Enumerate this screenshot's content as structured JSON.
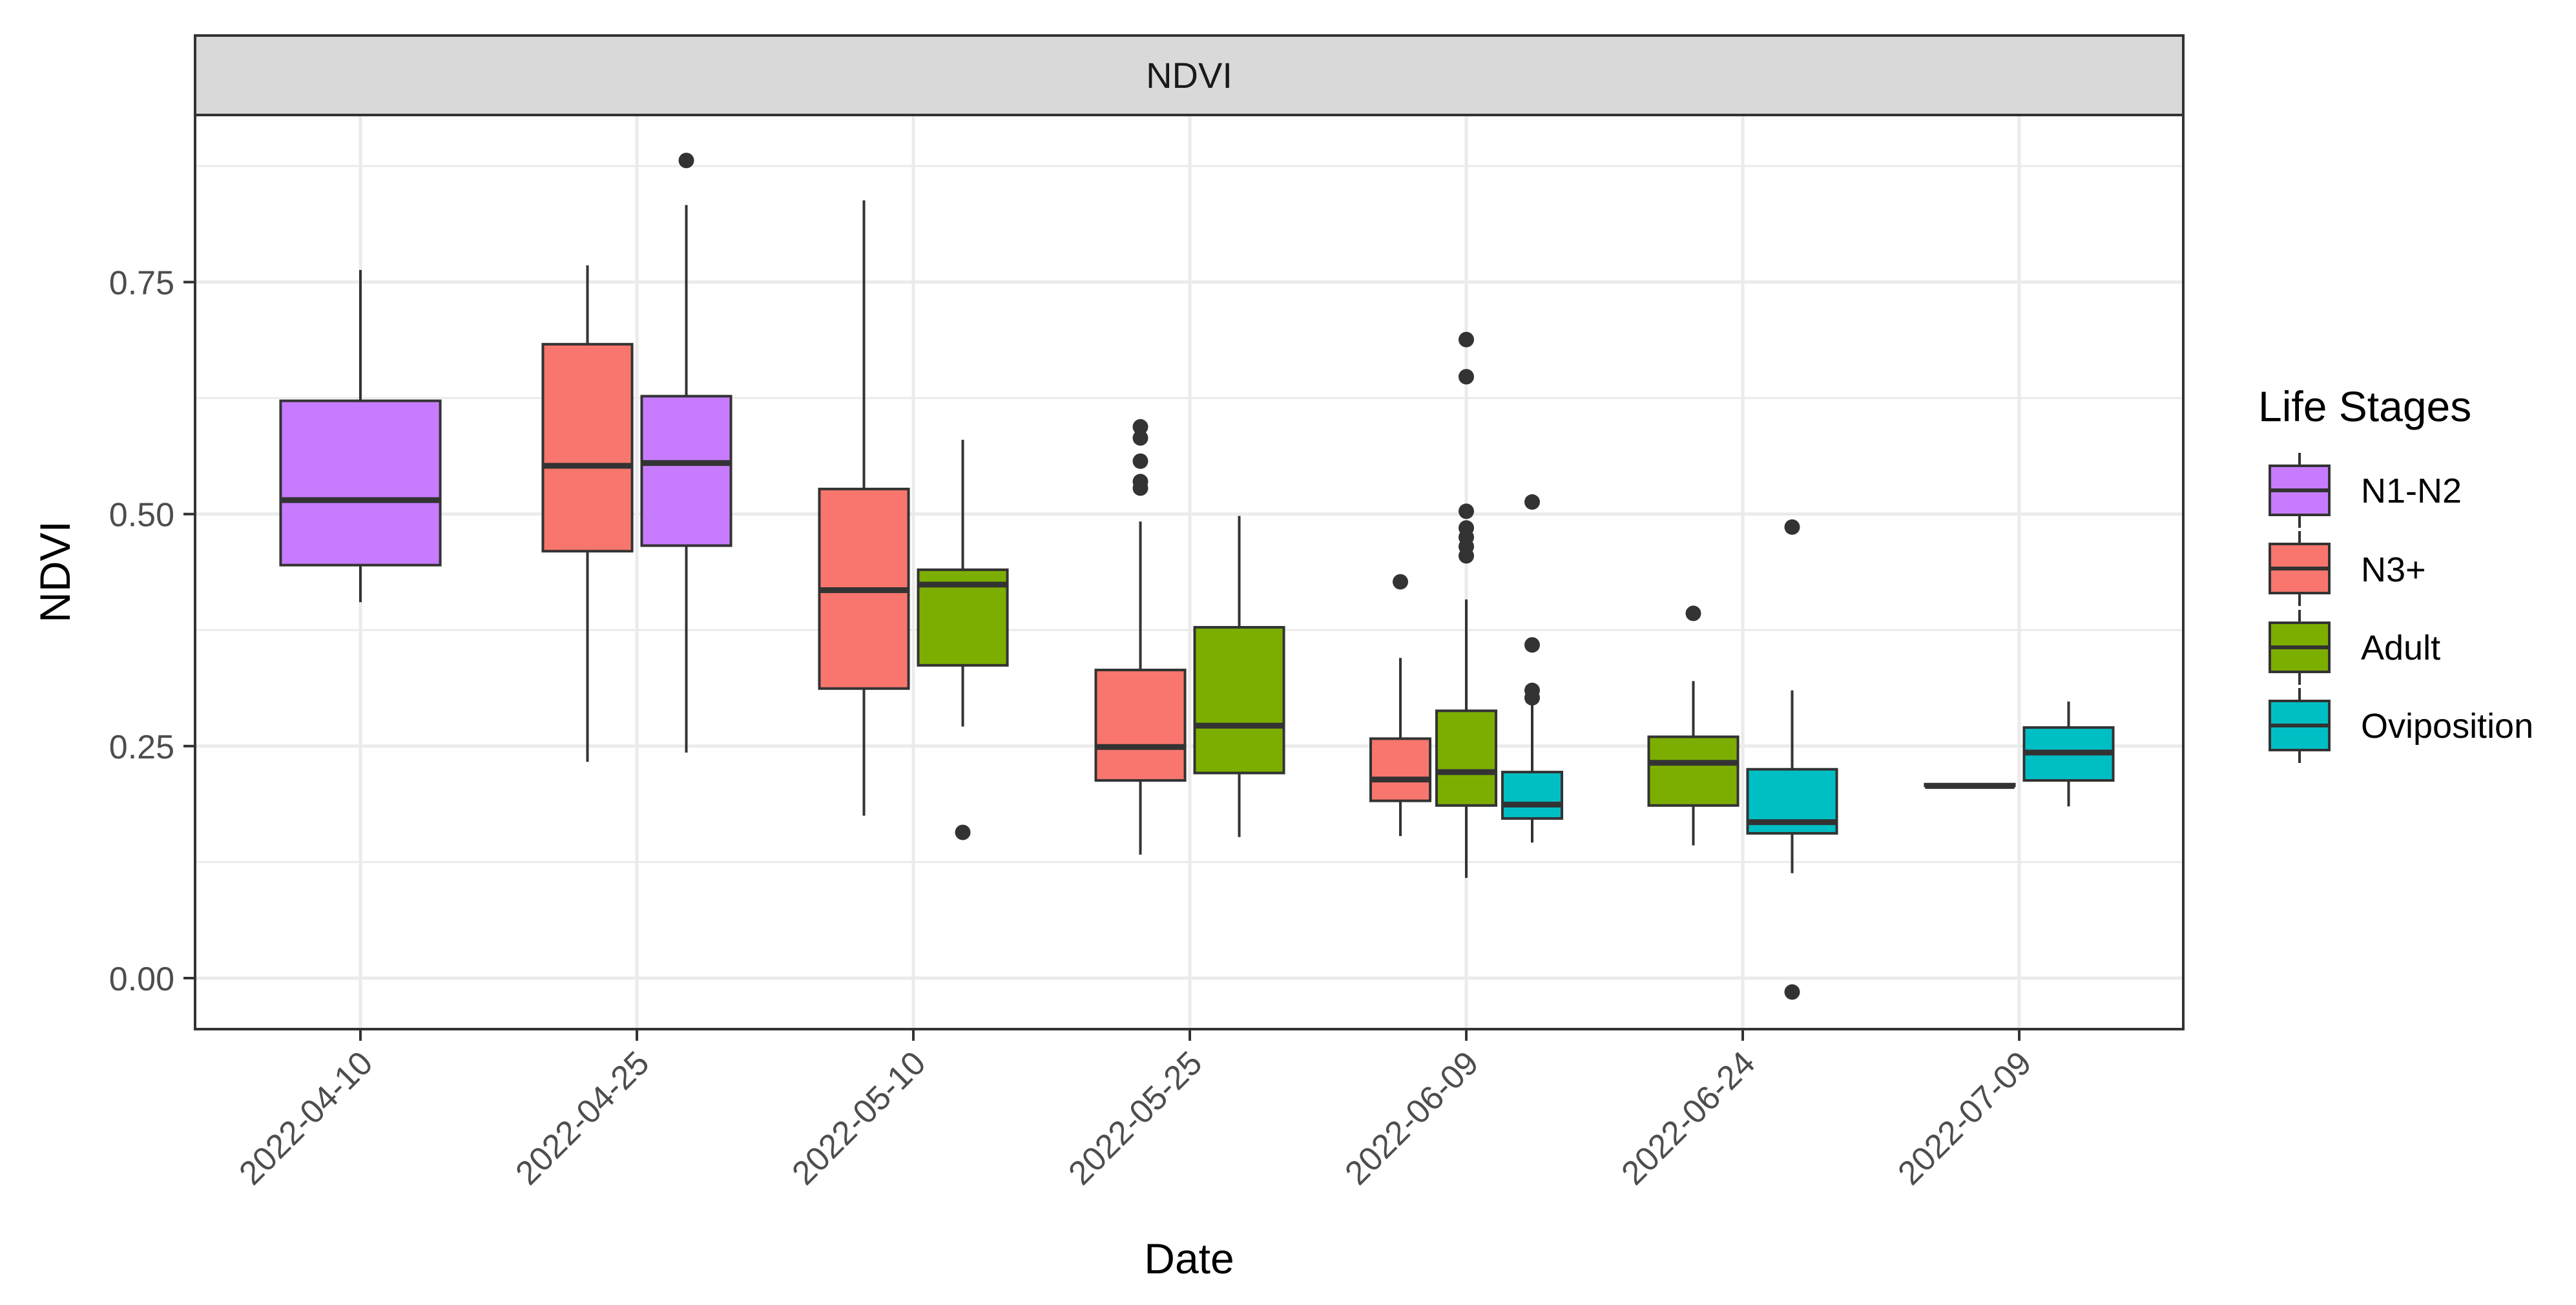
{
  "chart_data": {
    "type": "boxplot",
    "facet_title": "NDVI",
    "xlabel": "Date",
    "ylabel": "NDVI",
    "ylim": [
      -0.055,
      0.93
    ],
    "y_ticks": [
      0.0,
      0.25,
      0.5,
      0.75
    ],
    "y_tick_labels": [
      "0.00",
      "0.25",
      "0.50",
      "0.75"
    ],
    "categories": [
      "2022-04-10",
      "2022-04-25",
      "2022-05-10",
      "2022-05-25",
      "2022-06-09",
      "2022-06-24",
      "2022-07-09"
    ],
    "legend": {
      "title": "Life Stages",
      "position": "right",
      "entries": [
        {
          "name": "N1-N2",
          "color": "#C77CFF"
        },
        {
          "name": "N3+",
          "color": "#F8766D"
        },
        {
          "name": "Adult",
          "color": "#7CAE00"
        },
        {
          "name": "Oviposition",
          "color": "#00BFC4"
        }
      ]
    },
    "boxes": [
      {
        "category": "2022-04-10",
        "series": "N1-N2",
        "slot": 0,
        "slots": 1,
        "whisker_low": 0.405,
        "q1": 0.445,
        "median": 0.515,
        "q3": 0.622,
        "whisker_high": 0.763,
        "outliers": []
      },
      {
        "category": "2022-04-25",
        "series": "N3+",
        "slot": 0,
        "slots": 2,
        "whisker_low": 0.233,
        "q1": 0.46,
        "median": 0.552,
        "q3": 0.683,
        "whisker_high": 0.768,
        "outliers": []
      },
      {
        "category": "2022-04-25",
        "series": "N1-N2",
        "slot": 1,
        "slots": 2,
        "whisker_low": 0.243,
        "q1": 0.466,
        "median": 0.555,
        "q3": 0.627,
        "whisker_high": 0.833,
        "outliers": [
          0.881
        ]
      },
      {
        "category": "2022-05-10",
        "series": "N3+",
        "slot": 0,
        "slots": 2,
        "whisker_low": 0.175,
        "q1": 0.312,
        "median": 0.418,
        "q3": 0.527,
        "whisker_high": 0.838,
        "outliers": []
      },
      {
        "category": "2022-05-10",
        "series": "Adult",
        "slot": 1,
        "slots": 2,
        "whisker_low": 0.271,
        "q1": 0.337,
        "median": 0.424,
        "q3": 0.44,
        "whisker_high": 0.58,
        "outliers": [
          0.157
        ]
      },
      {
        "category": "2022-05-25",
        "series": "N3+",
        "slot": 0,
        "slots": 2,
        "whisker_low": 0.133,
        "q1": 0.213,
        "median": 0.249,
        "q3": 0.332,
        "whisker_high": 0.492,
        "outliers": [
          0.528,
          0.535,
          0.557,
          0.582,
          0.594
        ]
      },
      {
        "category": "2022-05-25",
        "series": "Adult",
        "slot": 1,
        "slots": 2,
        "whisker_low": 0.152,
        "q1": 0.221,
        "median": 0.272,
        "q3": 0.378,
        "whisker_high": 0.498,
        "outliers": []
      },
      {
        "category": "2022-06-09",
        "series": "N3+",
        "slot": 0,
        "slots": 3,
        "whisker_low": 0.153,
        "q1": 0.191,
        "median": 0.214,
        "q3": 0.258,
        "whisker_high": 0.345,
        "outliers": [
          0.427
        ]
      },
      {
        "category": "2022-06-09",
        "series": "Adult",
        "slot": 1,
        "slots": 3,
        "whisker_low": 0.108,
        "q1": 0.186,
        "median": 0.222,
        "q3": 0.288,
        "whisker_high": 0.408,
        "outliers": [
          0.455,
          0.465,
          0.475,
          0.485,
          0.503,
          0.648,
          0.688
        ]
      },
      {
        "category": "2022-06-09",
        "series": "Oviposition",
        "slot": 2,
        "slots": 3,
        "whisker_low": 0.146,
        "q1": 0.172,
        "median": 0.187,
        "q3": 0.222,
        "whisker_high": 0.295,
        "outliers": [
          0.302,
          0.31,
          0.359,
          0.513
        ]
      },
      {
        "category": "2022-06-24",
        "series": "Adult",
        "slot": 0,
        "slots": 2,
        "whisker_low": 0.143,
        "q1": 0.186,
        "median": 0.232,
        "q3": 0.26,
        "whisker_high": 0.32,
        "outliers": [
          0.393
        ]
      },
      {
        "category": "2022-06-24",
        "series": "Oviposition",
        "slot": 1,
        "slots": 2,
        "whisker_low": 0.113,
        "q1": 0.156,
        "median": 0.168,
        "q3": 0.225,
        "whisker_high": 0.31,
        "outliers": [
          -0.015,
          0.486
        ]
      },
      {
        "category": "2022-07-09",
        "series": "Adult",
        "slot": 0,
        "slots": 2,
        "whisker_low": 0.207,
        "q1": 0.207,
        "median": 0.207,
        "q3": 0.209,
        "whisker_high": 0.209,
        "outliers": []
      },
      {
        "category": "2022-07-09",
        "series": "Oviposition",
        "slot": 1,
        "slots": 2,
        "whisker_low": 0.185,
        "q1": 0.213,
        "median": 0.243,
        "q3": 0.27,
        "whisker_high": 0.298,
        "outliers": []
      }
    ]
  }
}
